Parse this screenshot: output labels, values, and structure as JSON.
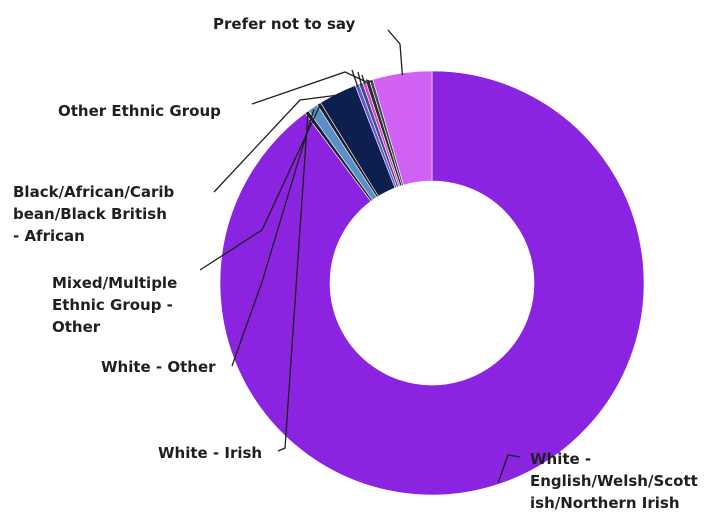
{
  "chart_data": {
    "type": "pie",
    "variant": "donut",
    "legend": "none",
    "slices": [
      {
        "label": "White - English/Welsh/Scottish/Northern Irish",
        "value": 89.7,
        "color": "#8a24e0"
      },
      {
        "label": "White - Irish",
        "value": 0.3,
        "color": "#1c1c2e"
      },
      {
        "label": "White - Other",
        "value": 0.8,
        "color": "#5b8fc7"
      },
      {
        "label": "Mixed/Multiple Ethnic Group - Other",
        "value": 0.3,
        "color": "#1c1c2e"
      },
      {
        "label": "Black/African/Caribbean/Black British - African",
        "value": 2.9,
        "color": "#0d1f4e"
      },
      {
        "label": "",
        "value": 0.3,
        "color": "#6a52d0"
      },
      {
        "label": "",
        "value": 0.3,
        "color": "#3a4f8c"
      },
      {
        "label": "",
        "value": 0.25,
        "color": "#e040c0"
      },
      {
        "label": "Other Ethnic Group",
        "value": 0.3,
        "color": "#2a2a3a"
      },
      {
        "label": "",
        "value": 0.25,
        "color": "#444455"
      },
      {
        "label": "Prefer not to say",
        "value": 4.5,
        "color": "#d160f5"
      }
    ]
  }
}
